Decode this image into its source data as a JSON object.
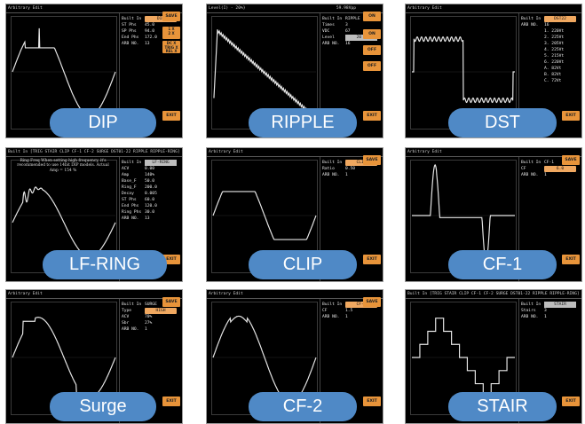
{
  "panels": [
    {
      "name": "dip",
      "title": "Arbitrary Edit",
      "right_title": "",
      "label": "DIP",
      "params": [
        {
          "k": "Built In",
          "v": "DIP",
          "style": "sel"
        },
        {
          "k": "ST Phs",
          "v": "45.0"
        },
        {
          "k": "SP Phs",
          "v": "94.0"
        },
        {
          "k": "End Phs",
          "v": "172.0"
        },
        {
          "k": "ARB NO.",
          "v": "13"
        }
      ],
      "buttons": [
        {
          "label": "SAVE",
          "size": "normal"
        },
        {
          "label": "1 X\n2 X",
          "size": "multi"
        },
        {
          "label": "DC X\nTRIG X\nREL X",
          "size": "multi"
        },
        {
          "label": "EXIT",
          "size": "normal"
        }
      ]
    },
    {
      "name": "ripple",
      "title": "Level(I) - 20%}",
      "right_title": "59.98Vpp",
      "label": "RIPPLE",
      "params": [
        {
          "k": "Built In",
          "v": "RIPPLE"
        },
        {
          "k": "Times",
          "v": "3"
        },
        {
          "k": "VDC",
          "v": "67"
        },
        {
          "k": "Level",
          "v": "20 %",
          "style": "sel-grey"
        },
        {
          "k": "ARB NO.",
          "v": "16"
        }
      ],
      "buttons": [
        {
          "label": "ON",
          "size": "normal"
        },
        {
          "label": "ON",
          "size": "normal"
        },
        {
          "label": "OFF",
          "size": "normal"
        },
        {
          "label": "OFF",
          "size": "normal"
        },
        {
          "label": "EXIT",
          "size": "normal"
        }
      ]
    },
    {
      "name": "dst",
      "title": "Arbitrary Edit",
      "right_title": "",
      "label": "DST",
      "params": [
        {
          "k": "Built In",
          "v": "DST22",
          "style": "sel"
        },
        {
          "k": "ARB NO.",
          "v": "16"
        },
        {
          "k": "",
          "v": "1. 220Vt"
        },
        {
          "k": "",
          "v": "2. 225Vt"
        },
        {
          "k": "",
          "v": "3. 205Vt"
        },
        {
          "k": "",
          "v": "4. 225Vt"
        },
        {
          "k": "",
          "v": "5. 215Vt"
        },
        {
          "k": "",
          "v": "6. 220Vt"
        },
        {
          "k": "",
          "v": "A. 82Vt"
        },
        {
          "k": "",
          "v": "B. 82Vt"
        },
        {
          "k": "",
          "v": "C. 72Vt"
        }
      ],
      "buttons": [
        {
          "label": "EXIT",
          "size": "normal"
        }
      ]
    },
    {
      "name": "lf-ring",
      "title": "Built In [TRIG STAIR CLIP CF-1 CF-2 SURGE DST01-22 RIPPLE RIPPLE-RING]",
      "right_title": "",
      "label": "LF-RING",
      "note": "Ring Freq When setting high frequency, it's recommended to use 14bit DIP models. Actual Amp = 154 %",
      "params": [
        {
          "k": "Built In",
          "v": "LF-RING",
          "style": "sel-grey"
        },
        {
          "k": "ACV",
          "v": "0.00"
        },
        {
          "k": "Amp",
          "v": "140%"
        },
        {
          "k": "Base_F",
          "v": "50.0"
        },
        {
          "k": "Ring_F",
          "v": "200.0"
        },
        {
          "k": "Decay",
          "v": "0.005"
        },
        {
          "k": "ST Phs",
          "v": "60.0"
        },
        {
          "k": "End Phs",
          "v": "120.0"
        },
        {
          "k": "Ring Phs",
          "v": "30.0"
        },
        {
          "k": "ARB NO.",
          "v": "13"
        }
      ],
      "buttons": [
        {
          "label": "EXIT",
          "size": "normal"
        }
      ]
    },
    {
      "name": "clip",
      "title": "Arbitrary Edit",
      "right_title": "",
      "label": "CLIP",
      "params": [
        {
          "k": "Built In",
          "v": "CLIP",
          "style": "sel"
        },
        {
          "k": "Ratio",
          "v": "0.50"
        },
        {
          "k": "ARB NO.",
          "v": "1"
        }
      ],
      "buttons": [
        {
          "label": "SAVE",
          "size": "normal"
        },
        {
          "label": "EXIT",
          "size": "normal"
        }
      ]
    },
    {
      "name": "cf-1",
      "title": "Arbitrary Edit",
      "right_title": "",
      "label": "CF-1",
      "params": [
        {
          "k": "Built In",
          "v": "CF-1"
        },
        {
          "k": "CF",
          "v": "6.0",
          "style": "sel"
        },
        {
          "k": "ARB NO.",
          "v": "1"
        }
      ],
      "buttons": [
        {
          "label": "SAVE",
          "size": "normal"
        },
        {
          "label": "EXIT",
          "size": "normal"
        }
      ]
    },
    {
      "name": "surge",
      "title": "Arbitrary Edit",
      "right_title": "",
      "label": "Surge",
      "params": [
        {
          "k": "Built In",
          "v": "SURGE"
        },
        {
          "k": "Type",
          "v": "HIGH",
          "style": "sel"
        },
        {
          "k": "ACV",
          "v": "70%"
        },
        {
          "k": "Sbr",
          "v": "27%"
        },
        {
          "k": "ARB NO.",
          "v": "1"
        }
      ],
      "buttons": [
        {
          "label": "SAVE",
          "size": "normal"
        },
        {
          "label": "EXIT",
          "size": "normal"
        }
      ]
    },
    {
      "name": "cf-2",
      "title": "Arbitrary Edit",
      "right_title": "",
      "label": "CF-2",
      "params": [
        {
          "k": "Built In",
          "v": "CF-2",
          "style": "sel"
        },
        {
          "k": "CF",
          "v": "1.5"
        },
        {
          "k": "ARB NO.",
          "v": "1"
        }
      ],
      "buttons": [
        {
          "label": "SAVE",
          "size": "normal"
        },
        {
          "label": "EXIT",
          "size": "normal"
        }
      ]
    },
    {
      "name": "stair",
      "title": "Built In [TRIG STAIR CLIP CF-1 CF-2 SURGE DST01-22 RIPPLE RIPPLE-RING]",
      "right_title": "",
      "label": "STAIR",
      "params": [
        {
          "k": "Built In",
          "v": "STAIR",
          "style": "sel-grey"
        },
        {
          "k": "Stairs",
          "v": "3"
        },
        {
          "k": "ARB NO.",
          "v": "1"
        }
      ],
      "buttons": [
        {
          "label": "EXIT",
          "size": "normal"
        }
      ]
    }
  ],
  "colors": {
    "label_bg": "#4f89c6",
    "softkey": "#e8943a",
    "waveform": "#e6e6e6"
  }
}
